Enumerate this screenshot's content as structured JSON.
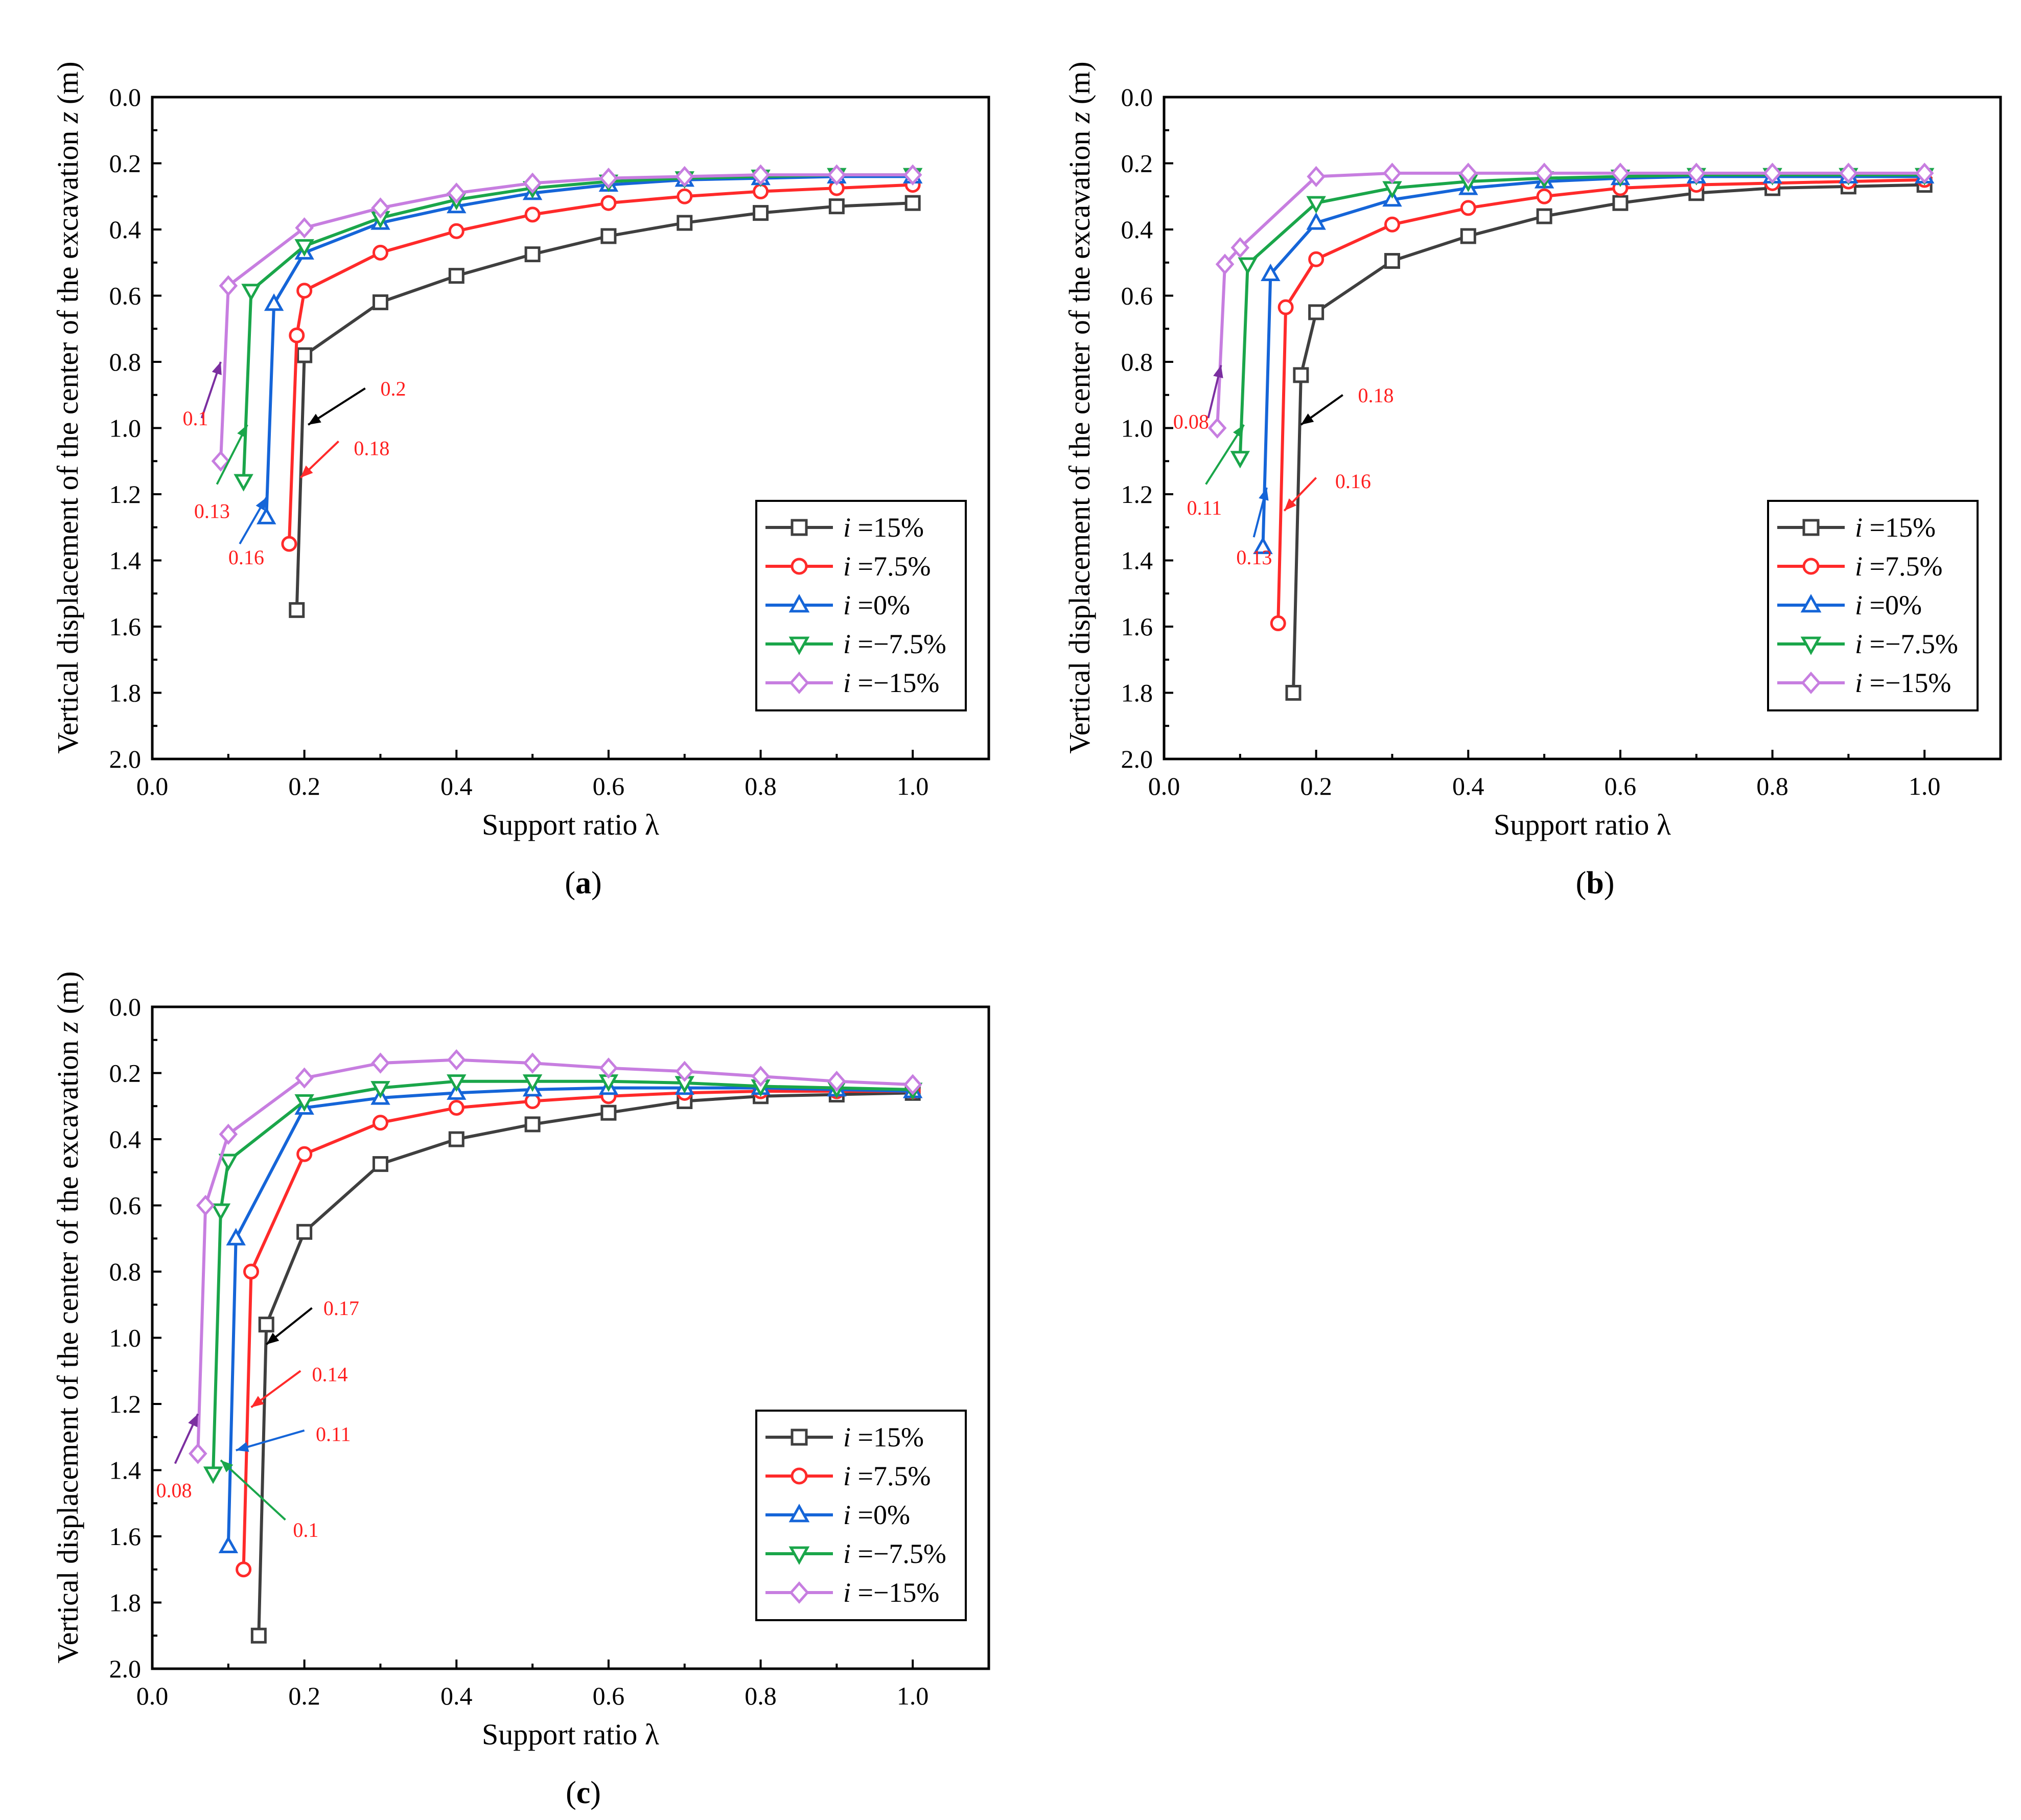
{
  "figure": {
    "x_label": "Support ratio λ",
    "y_label_main": "Vertical displacement of the center of the excavation ",
    "y_label_var": "z",
    "y_label_unit": " (m)"
  },
  "chart_data": [
    {
      "type": "line",
      "panel_label_letter": "a",
      "xlim": [
        0.0,
        1.1
      ],
      "ylim": [
        0.0,
        2.0
      ],
      "y_inverted": true,
      "x_ticks": [
        "0.0",
        "0.2",
        "0.4",
        "0.6",
        "0.8",
        "1.0"
      ],
      "y_ticks": [
        "0.0",
        "0.2",
        "0.4",
        "0.6",
        "0.8",
        "1.0",
        "1.2",
        "1.4",
        "1.6",
        "1.8",
        "2.0"
      ],
      "legend_position": "bottom-right",
      "series": [
        {
          "name": "i =15%",
          "legend_var": "i",
          "legend_value": " =15%",
          "color": "#3f3f3f",
          "marker": "square",
          "x": [
            0.19,
            0.2,
            0.3,
            0.4,
            0.5,
            0.6,
            0.7,
            0.8,
            0.9,
            1.0
          ],
          "y": [
            1.55,
            0.78,
            0.62,
            0.54,
            0.475,
            0.42,
            0.38,
            0.35,
            0.33,
            0.32
          ]
        },
        {
          "name": "i =7.5%",
          "legend_var": "i",
          "legend_value": " =7.5%",
          "color": "#ff2a2a",
          "marker": "circle",
          "x": [
            0.18,
            0.19,
            0.2,
            0.3,
            0.4,
            0.5,
            0.6,
            0.7,
            0.8,
            0.9,
            1.0
          ],
          "y": [
            1.35,
            0.72,
            0.585,
            0.47,
            0.405,
            0.355,
            0.32,
            0.3,
            0.285,
            0.275,
            0.265
          ]
        },
        {
          "name": "i =0%",
          "legend_var": "i",
          "legend_value": " =0%",
          "color": "#1565d8",
          "marker": "triangle-up",
          "x": [
            0.15,
            0.16,
            0.2,
            0.3,
            0.4,
            0.5,
            0.6,
            0.7,
            0.8,
            0.9,
            1.0
          ],
          "y": [
            1.27,
            0.625,
            0.47,
            0.38,
            0.33,
            0.29,
            0.265,
            0.25,
            0.245,
            0.24,
            0.24
          ]
        },
        {
          "name": "i =−7.5%",
          "legend_var": "i",
          "legend_value": " =−7.5%",
          "color": "#1aa64a",
          "marker": "triangle-down",
          "x": [
            0.12,
            0.13,
            0.2,
            0.3,
            0.4,
            0.5,
            0.6,
            0.7,
            0.8,
            0.9,
            1.0
          ],
          "y": [
            1.16,
            0.585,
            0.45,
            0.365,
            0.31,
            0.275,
            0.255,
            0.245,
            0.24,
            0.235,
            0.235
          ]
        },
        {
          "name": "i =−15%",
          "legend_var": "i",
          "legend_value": " =−15%",
          "color": "#c77ee0",
          "marker": "diamond",
          "x": [
            0.09,
            0.1,
            0.2,
            0.3,
            0.4,
            0.5,
            0.6,
            0.7,
            0.8,
            0.9,
            1.0
          ],
          "y": [
            1.1,
            0.57,
            0.395,
            0.335,
            0.29,
            0.26,
            0.245,
            0.24,
            0.235,
            0.235,
            0.235
          ]
        }
      ],
      "annotations": [
        {
          "text": "0.2",
          "color": "#000000",
          "tail": [
            0.28,
            0.88
          ],
          "head": [
            0.205,
            0.99
          ],
          "label": [
            0.3,
            0.88
          ]
        },
        {
          "text": "0.18",
          "color": "#ff2a2a",
          "tail": [
            0.245,
            1.04
          ],
          "head": [
            0.195,
            1.15
          ],
          "label": [
            0.265,
            1.06
          ]
        },
        {
          "text": "0.1",
          "color": "#7b2fa0",
          "tail": [
            0.065,
            0.97
          ],
          "head": [
            0.09,
            0.8
          ],
          "label": [
            0.04,
            0.97
          ]
        },
        {
          "text": "0.13",
          "color": "#1aa64a",
          "tail": [
            0.085,
            1.17
          ],
          "head": [
            0.125,
            0.99
          ],
          "label": [
            0.055,
            1.25
          ]
        },
        {
          "text": "0.16",
          "color": "#1565d8",
          "tail": [
            0.115,
            1.35
          ],
          "head": [
            0.15,
            1.21
          ],
          "label": [
            0.1,
            1.39
          ]
        }
      ]
    },
    {
      "type": "line",
      "panel_label_letter": "b",
      "xlim": [
        0.0,
        1.1
      ],
      "ylim": [
        0.0,
        2.0
      ],
      "y_inverted": true,
      "x_ticks": [
        "0.0",
        "0.2",
        "0.4",
        "0.6",
        "0.8",
        "1.0"
      ],
      "y_ticks": [
        "0.0",
        "0.2",
        "0.4",
        "0.6",
        "0.8",
        "1.0",
        "1.2",
        "1.4",
        "1.6",
        "1.8",
        "2.0"
      ],
      "legend_position": "bottom-right",
      "series": [
        {
          "name": "i =15%",
          "legend_var": "i",
          "legend_value": " =15%",
          "color": "#3f3f3f",
          "marker": "square",
          "x": [
            0.17,
            0.18,
            0.2,
            0.3,
            0.4,
            0.5,
            0.6,
            0.7,
            0.8,
            0.9,
            1.0
          ],
          "y": [
            1.8,
            0.84,
            0.65,
            0.495,
            0.42,
            0.36,
            0.32,
            0.29,
            0.275,
            0.27,
            0.265
          ]
        },
        {
          "name": "i =7.5%",
          "legend_var": "i",
          "legend_value": " =7.5%",
          "color": "#ff2a2a",
          "marker": "circle",
          "x": [
            0.15,
            0.16,
            0.2,
            0.3,
            0.4,
            0.5,
            0.6,
            0.7,
            0.8,
            0.9,
            1.0
          ],
          "y": [
            1.59,
            0.635,
            0.49,
            0.385,
            0.335,
            0.3,
            0.275,
            0.265,
            0.26,
            0.255,
            0.25
          ]
        },
        {
          "name": "i =0%",
          "legend_var": "i",
          "legend_value": " =0%",
          "color": "#1565d8",
          "marker": "triangle-up",
          "x": [
            0.13,
            0.14,
            0.2,
            0.3,
            0.4,
            0.5,
            0.6,
            0.7,
            0.8,
            0.9,
            1.0
          ],
          "y": [
            1.36,
            0.535,
            0.38,
            0.31,
            0.275,
            0.255,
            0.245,
            0.24,
            0.24,
            0.24,
            0.24
          ]
        },
        {
          "name": "i =−7.5%",
          "legend_var": "i",
          "legend_value": " =−7.5%",
          "color": "#1aa64a",
          "marker": "triangle-down",
          "x": [
            0.1,
            0.11,
            0.2,
            0.3,
            0.4,
            0.5,
            0.6,
            0.7,
            0.8,
            0.9,
            1.0
          ],
          "y": [
            1.09,
            0.505,
            0.32,
            0.275,
            0.255,
            0.245,
            0.24,
            0.235,
            0.235,
            0.235,
            0.235
          ]
        },
        {
          "name": "i =−15%",
          "legend_var": "i",
          "legend_value": " =−15%",
          "color": "#c77ee0",
          "marker": "diamond",
          "x": [
            0.07,
            0.08,
            0.1,
            0.2,
            0.3,
            0.4,
            0.5,
            0.6,
            0.7,
            0.8,
            0.9,
            1.0
          ],
          "y": [
            1.0,
            0.505,
            0.455,
            0.24,
            0.23,
            0.23,
            0.23,
            0.23,
            0.23,
            0.23,
            0.23,
            0.23
          ]
        }
      ],
      "annotations": [
        {
          "text": "0.18",
          "color": "#000000",
          "tail": [
            0.235,
            0.9
          ],
          "head": [
            0.18,
            0.99
          ],
          "label": [
            0.255,
            0.9
          ]
        },
        {
          "text": "0.16",
          "color": "#ff2a2a",
          "tail": [
            0.2,
            1.15
          ],
          "head": [
            0.158,
            1.25
          ],
          "label": [
            0.225,
            1.16
          ]
        },
        {
          "text": "0.08",
          "color": "#7b2fa0",
          "tail": [
            0.058,
            0.97
          ],
          "head": [
            0.075,
            0.81
          ],
          "label": [
            0.012,
            0.98
          ]
        },
        {
          "text": "0.11",
          "color": "#1aa64a",
          "tail": [
            0.055,
            1.17
          ],
          "head": [
            0.105,
            0.99
          ],
          "label": [
            0.03,
            1.24
          ]
        },
        {
          "text": "0.13",
          "color": "#1565d8",
          "tail": [
            0.118,
            1.33
          ],
          "head": [
            0.135,
            1.18
          ],
          "label": [
            0.095,
            1.39
          ]
        }
      ]
    },
    {
      "type": "line",
      "panel_label_letter": "c",
      "xlim": [
        0.0,
        1.1
      ],
      "ylim": [
        0.0,
        2.0
      ],
      "y_inverted": true,
      "x_ticks": [
        "0.0",
        "0.2",
        "0.4",
        "0.6",
        "0.8",
        "1.0"
      ],
      "y_ticks": [
        "0.0",
        "0.2",
        "0.4",
        "0.6",
        "0.8",
        "1.0",
        "1.2",
        "1.4",
        "1.6",
        "1.8",
        "2.0"
      ],
      "legend_position": "bottom-right",
      "series": [
        {
          "name": "i =15%",
          "legend_var": "i",
          "legend_value": " =15%",
          "color": "#3f3f3f",
          "marker": "square",
          "x": [
            0.14,
            0.15,
            0.2,
            0.3,
            0.4,
            0.5,
            0.6,
            0.7,
            0.8,
            0.9,
            1.0
          ],
          "y": [
            1.9,
            0.96,
            0.68,
            0.475,
            0.4,
            0.355,
            0.32,
            0.285,
            0.27,
            0.265,
            0.26
          ]
        },
        {
          "name": "i =7.5%",
          "legend_var": "i",
          "legend_value": " =7.5%",
          "color": "#ff2a2a",
          "marker": "circle",
          "x": [
            0.12,
            0.13,
            0.2,
            0.3,
            0.4,
            0.5,
            0.6,
            0.7,
            0.8,
            0.9,
            1.0
          ],
          "y": [
            1.7,
            0.8,
            0.445,
            0.35,
            0.305,
            0.285,
            0.27,
            0.26,
            0.255,
            0.255,
            0.255
          ]
        },
        {
          "name": "i =0%",
          "legend_var": "i",
          "legend_value": " =0%",
          "color": "#1565d8",
          "marker": "triangle-up",
          "x": [
            0.1,
            0.11,
            0.2,
            0.3,
            0.4,
            0.5,
            0.6,
            0.7,
            0.8,
            0.9,
            1.0
          ],
          "y": [
            1.63,
            0.7,
            0.305,
            0.275,
            0.26,
            0.25,
            0.245,
            0.245,
            0.245,
            0.25,
            0.255
          ]
        },
        {
          "name": "i =−7.5%",
          "legend_var": "i",
          "legend_value": " =−7.5%",
          "color": "#1aa64a",
          "marker": "triangle-down",
          "x": [
            0.08,
            0.09,
            0.1,
            0.2,
            0.3,
            0.4,
            0.5,
            0.6,
            0.7,
            0.8,
            0.9,
            1.0
          ],
          "y": [
            1.41,
            0.615,
            0.465,
            0.285,
            0.245,
            0.225,
            0.225,
            0.225,
            0.23,
            0.24,
            0.245,
            0.25
          ]
        },
        {
          "name": "i =−15%",
          "legend_var": "i",
          "legend_value": " =−15%",
          "color": "#c77ee0",
          "marker": "diamond",
          "x": [
            0.06,
            0.07,
            0.1,
            0.2,
            0.3,
            0.4,
            0.5,
            0.6,
            0.7,
            0.8,
            0.9,
            1.0
          ],
          "y": [
            1.35,
            0.6,
            0.385,
            0.215,
            0.17,
            0.16,
            0.17,
            0.185,
            0.195,
            0.21,
            0.225,
            0.235
          ]
        }
      ],
      "annotations": [
        {
          "text": "0.17",
          "color": "#000000",
          "tail": [
            0.21,
            0.91
          ],
          "head": [
            0.15,
            1.02
          ],
          "label": [
            0.225,
            0.91
          ]
        },
        {
          "text": "0.14",
          "color": "#ff2a2a",
          "tail": [
            0.195,
            1.1
          ],
          "head": [
            0.13,
            1.21
          ],
          "label": [
            0.21,
            1.11
          ]
        },
        {
          "text": "0.11",
          "color": "#1565d8",
          "tail": [
            0.2,
            1.28
          ],
          "head": [
            0.11,
            1.34
          ],
          "label": [
            0.215,
            1.29
          ]
        },
        {
          "text": "0.08",
          "color": "#7b2fa0",
          "tail": [
            0.03,
            1.38
          ],
          "head": [
            0.06,
            1.23
          ],
          "label": [
            0.005,
            1.46
          ]
        },
        {
          "text": "0.1",
          "color": "#1aa64a",
          "tail": [
            0.175,
            1.55
          ],
          "head": [
            0.09,
            1.37
          ],
          "label": [
            0.185,
            1.58
          ]
        }
      ]
    }
  ]
}
